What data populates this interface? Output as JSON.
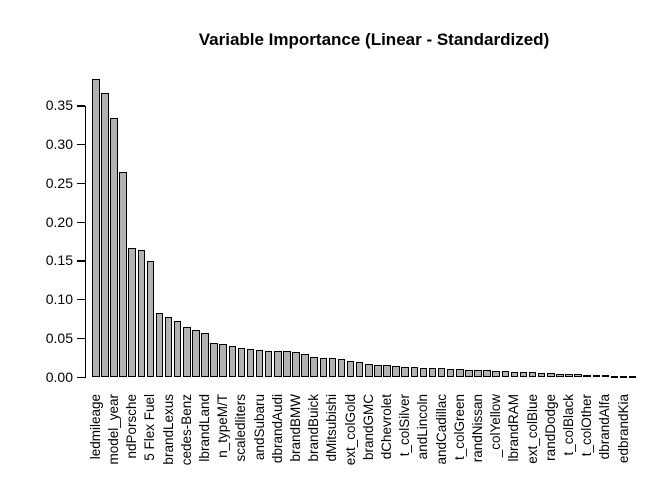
{
  "chart_data": {
    "type": "bar",
    "title": "Variable Importance (Linear - Standardized)",
    "xlabel": "",
    "ylabel": "",
    "ylim": [
      0,
      0.385
    ],
    "grid": false,
    "legend": null,
    "background_color": "#ffffff",
    "bar_fill_color": "#b2b2b2",
    "bar_border_color": "#000000",
    "ytick_values": [
      0.0,
      0.05,
      0.1,
      0.15,
      0.2,
      0.25,
      0.3,
      0.35
    ],
    "ytick_labels": [
      "0.00",
      "0.05",
      "0.10",
      "0.15",
      "0.20",
      "0.25",
      "0.30",
      "0.35"
    ],
    "n_bars": 60,
    "values": [
      0.385,
      0.366,
      0.334,
      0.265,
      0.167,
      0.164,
      0.15,
      0.083,
      0.077,
      0.072,
      0.064,
      0.061,
      0.057,
      0.044,
      0.042,
      0.04,
      0.038,
      0.036,
      0.035,
      0.034,
      0.0335,
      0.033,
      0.032,
      0.03,
      0.026,
      0.025,
      0.024,
      0.023,
      0.021,
      0.019,
      0.017,
      0.016,
      0.015,
      0.014,
      0.013,
      0.0125,
      0.012,
      0.0115,
      0.011,
      0.0105,
      0.01,
      0.0095,
      0.009,
      0.0085,
      0.008,
      0.0075,
      0.007,
      0.0065,
      0.006,
      0.0055,
      0.005,
      0.0045,
      0.004,
      0.0035,
      0.003,
      0.0025,
      0.002,
      0.0015,
      0.001,
      0.0005
    ],
    "xtick_label_step": 2,
    "xtick_labels": [
      "ledmileage",
      "model_year",
      "ndPorsche",
      "5 Flex Fuel",
      "brandLexus",
      "cedes-Benz",
      "lbrandLand",
      "n_typeM/T",
      "scaledliters",
      "andSubaru",
      "dbrandAudi",
      "brandBMW",
      "brandBuick",
      "dMitsubishi",
      "ext_colGold",
      "brandGMC",
      "dChevrolet",
      "t_colSilver",
      "andLincoln",
      "andCadillac",
      "t_colGreen",
      "randNissan",
      "_colYellow",
      "lbrandRAM",
      "ext_colBlue",
      "randDodge",
      "t_colBlack",
      "t_colOther",
      "dbrandAlfa",
      "edbrandKia"
    ]
  }
}
